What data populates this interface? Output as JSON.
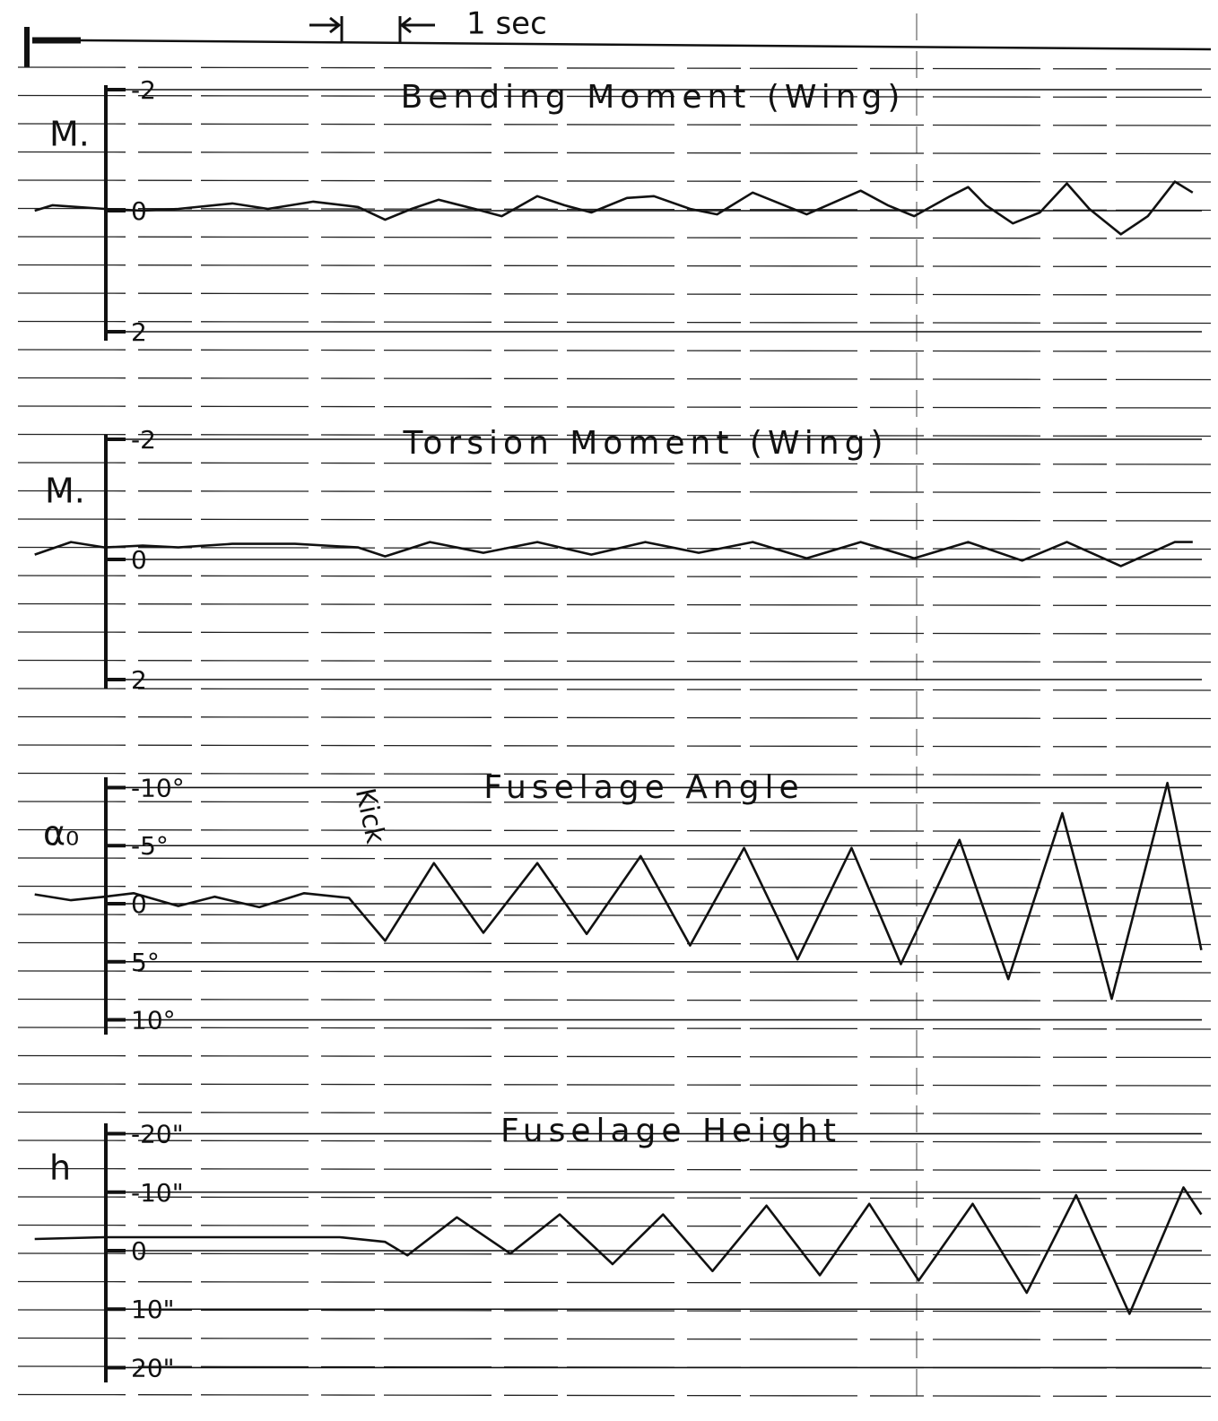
{
  "time_scale": "1 sec",
  "chart_data": [
    {
      "type": "line",
      "title": "Bending Moment (Wing)",
      "ylabel": "M.",
      "xlim": [
        -1.2,
        19.1
      ],
      "ylim": [
        2,
        -2
      ],
      "yticks": [
        -2,
        0,
        2
      ],
      "grid": true,
      "color": "#111111",
      "x": [
        -1.22,
        -0.91,
        0,
        0.66,
        1.28,
        2.22,
        2.84,
        3.63,
        4.41,
        4.88,
        5.34,
        5.81,
        6.44,
        6.91,
        7.53,
        8.0,
        8.47,
        9.09,
        9.56,
        10.19,
        10.66,
        11.28,
        11.75,
        12.22,
        13.16,
        13.63,
        14.09,
        14.72,
        15.03,
        15.34,
        15.81,
        16.28,
        16.75,
        17.14,
        17.69,
        18.16,
        18.63,
        18.94
      ],
      "values": [
        0,
        -0.09,
        -0.03,
        0,
        -0.03,
        -0.12,
        -0.03,
        -0.15,
        -0.06,
        0.15,
        -0.03,
        -0.18,
        -0.03,
        0.09,
        -0.24,
        -0.09,
        0.03,
        -0.21,
        -0.24,
        -0.03,
        0.06,
        -0.3,
        -0.12,
        0.06,
        -0.33,
        -0.09,
        0.09,
        -0.24,
        -0.39,
        -0.09,
        0.21,
        0.03,
        -0.45,
        -0.03,
        0.39,
        0.09,
        -0.48,
        -0.3
      ]
    },
    {
      "type": "line",
      "title": "Torsion Moment (Wing)",
      "ylabel": "M.",
      "xlim": [
        -1.2,
        19.1
      ],
      "ylim": [
        2,
        -2
      ],
      "yticks": [
        -2,
        0,
        2
      ],
      "grid": true,
      "color": "#111111",
      "x": [
        -1.22,
        -0.59,
        0,
        0.66,
        1.28,
        2.22,
        3.31,
        4.41,
        4.88,
        5.66,
        6.59,
        7.53,
        8.47,
        9.41,
        10.34,
        11.28,
        12.22,
        13.16,
        14.09,
        15.03,
        15.97,
        16.75,
        17.69,
        18.63,
        18.94
      ],
      "values": [
        -0.08,
        -0.29,
        -0.2,
        -0.23,
        -0.2,
        -0.26,
        -0.26,
        -0.2,
        -0.05,
        -0.29,
        -0.11,
        -0.29,
        -0.08,
        -0.29,
        -0.11,
        -0.29,
        -0.02,
        -0.29,
        -0.02,
        -0.29,
        0.02,
        -0.29,
        0.11,
        -0.29,
        -0.29
      ]
    },
    {
      "type": "line",
      "title": "Fuselage Angle",
      "ylabel": "α₀",
      "annotation": "Kick",
      "xlim": [
        -1.2,
        19.1
      ],
      "ylim": [
        10.5,
        -10.5
      ],
      "yticks": [
        {
          "value": -10,
          "label": "-10°"
        },
        {
          "value": -5,
          "label": "-5°"
        },
        0,
        {
          "value": 5,
          "label": "5°"
        },
        {
          "value": 10,
          "label": "10°"
        }
      ],
      "grid": true,
      "color": "#111111",
      "x": [
        -1.22,
        -0.59,
        0,
        0.5,
        1.28,
        1.91,
        2.69,
        3.47,
        4.25,
        4.88,
        5.73,
        6.59,
        7.53,
        8.39,
        9.33,
        10.19,
        11.13,
        12.06,
        13.0,
        13.86,
        14.88,
        15.73,
        16.67,
        17.53,
        18.5,
        19.09
      ],
      "values": [
        -0.8,
        -0.3,
        -0.6,
        -0.9,
        0.2,
        -0.6,
        0.3,
        -0.9,
        -0.5,
        3.2,
        -3.5,
        2.5,
        -3.5,
        2.6,
        -4.1,
        3.6,
        -4.8,
        4.8,
        -4.8,
        5.2,
        -5.5,
        6.5,
        -7.8,
        8.2,
        -10.4,
        4.0
      ]
    },
    {
      "type": "line",
      "title": "Fuselage Height",
      "ylabel": "h",
      "xlim": [
        -1.2,
        19.1
      ],
      "ylim": [
        21,
        -21
      ],
      "yticks": [
        {
          "value": -20,
          "label": "-20\""
        },
        {
          "value": -10,
          "label": "-10\""
        },
        0,
        {
          "value": 10,
          "label": "10\""
        },
        {
          "value": 20,
          "label": "20\""
        }
      ],
      "grid": true,
      "color": "#111111",
      "x": [
        -1.22,
        0,
        1.28,
        2.84,
        4.09,
        4.88,
        5.27,
        6.13,
        7.06,
        7.92,
        8.84,
        9.72,
        10.58,
        11.52,
        12.45,
        13.31,
        14.17,
        15.11,
        16.05,
        16.91,
        17.84,
        18.78,
        19.09
      ],
      "values": [
        -2.0,
        -2.3,
        -2.3,
        -2.3,
        -2.3,
        -1.5,
        0.8,
        -5.7,
        0.5,
        -6.2,
        2.3,
        -6.2,
        3.5,
        -7.7,
        4.2,
        -8.0,
        5.1,
        -8.0,
        7.2,
        -9.5,
        10.8,
        -10.8,
        -6.2
      ]
    }
  ]
}
